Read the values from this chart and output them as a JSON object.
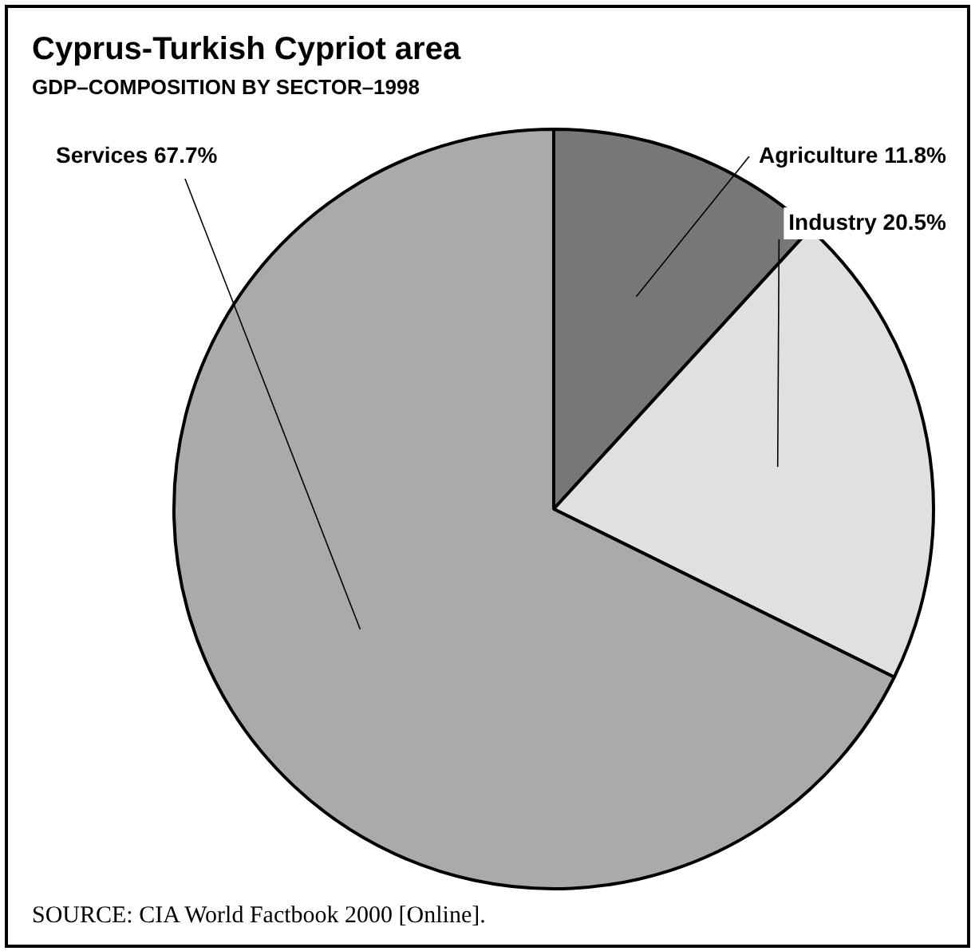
{
  "chart_data": {
    "type": "pie",
    "title": "Cyprus-Turkish Cypriot area",
    "subtitle": "GDP–COMPOSITION BY SECTOR–1998",
    "categories": [
      "Agriculture",
      "Industry",
      "Services"
    ],
    "values": [
      11.8,
      20.5,
      67.7
    ],
    "value_labels": [
      "11.8%",
      "20.5%",
      "67.7%"
    ],
    "colors": [
      "#777777",
      "#e0e0e0",
      "#aaaaaa"
    ],
    "legend": false,
    "annotations": [
      "SOURCE: CIA World Factbook 2000 [Online]."
    ]
  }
}
